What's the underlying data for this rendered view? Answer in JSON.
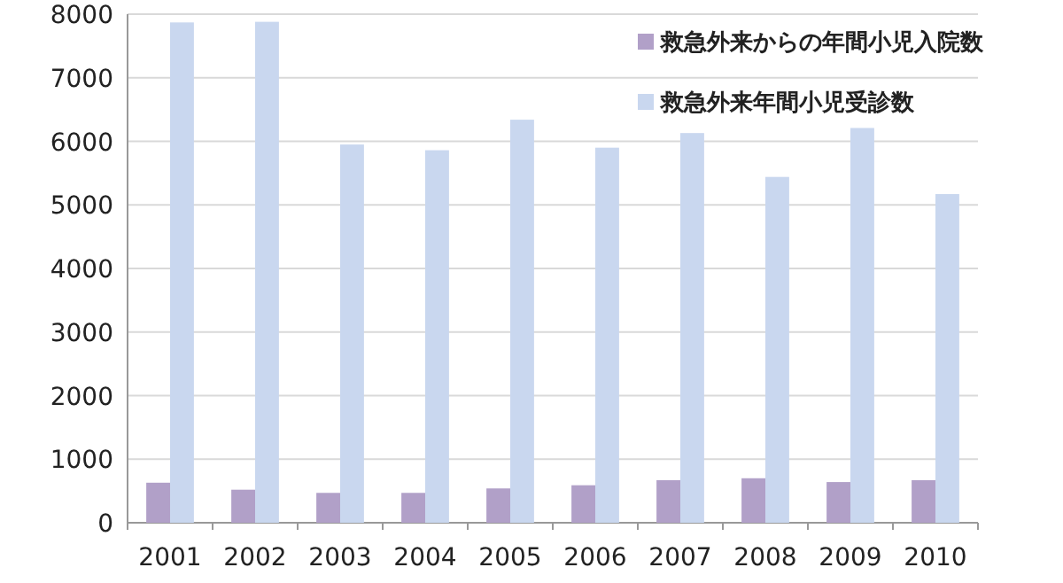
{
  "chart_data": {
    "type": "bar",
    "categories": [
      "2001",
      "2002",
      "2003",
      "2004",
      "2005",
      "2006",
      "2007",
      "2008",
      "2009",
      "2010"
    ],
    "series": [
      {
        "name": "救急外来からの年間小児入院数",
        "color": "#b1a0c8",
        "values": [
          630,
          520,
          470,
          470,
          540,
          590,
          670,
          700,
          640,
          670
        ]
      },
      {
        "name": "救急外来年間小児受診数",
        "color": "#c9d7ef",
        "values": [
          7870,
          7880,
          5950,
          5860,
          6340,
          5900,
          6130,
          5440,
          6210,
          5170
        ]
      }
    ],
    "ylim": [
      0,
      8000
    ],
    "yticks": [
      0,
      1000,
      2000,
      3000,
      4000,
      5000,
      6000,
      7000,
      8000
    ],
    "grid": "y",
    "legend": "top right"
  }
}
